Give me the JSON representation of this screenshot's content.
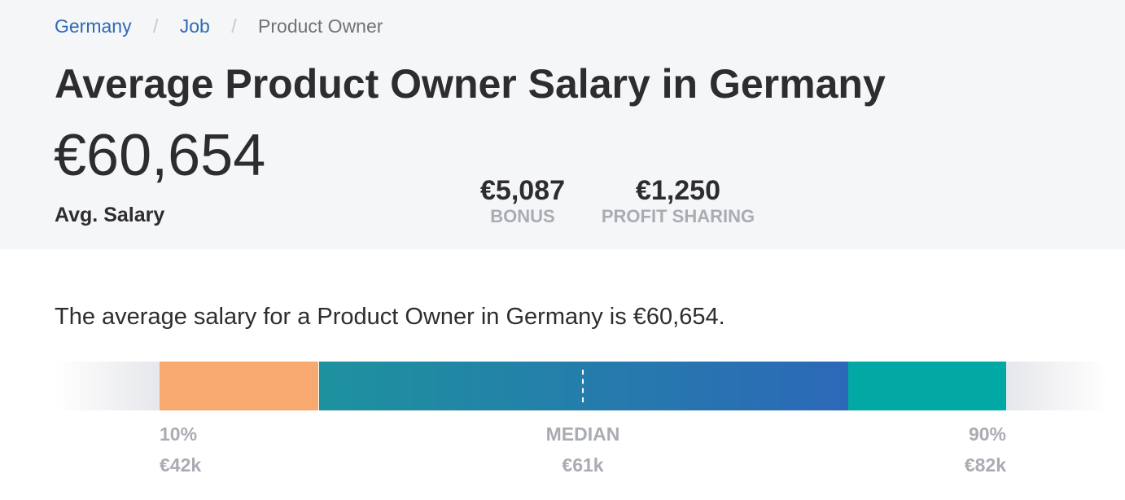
{
  "breadcrumb": {
    "items": [
      {
        "label": "Germany"
      },
      {
        "label": "Job"
      },
      {
        "label": "Product Owner"
      }
    ],
    "separator": "/"
  },
  "title": "Average Product Owner Salary in Germany",
  "avg_salary": {
    "value": "€60,654",
    "label": "Avg. Salary"
  },
  "stats": {
    "bonus": {
      "value": "€5,087",
      "label": "BONUS"
    },
    "profit_sharing": {
      "value": "€1,250",
      "label": "PROFIT SHARING"
    }
  },
  "summary": "The average salary for a Product Owner in Germany is €60,654.",
  "range_bar": {
    "p10": {
      "label": "10%",
      "value": "€42k"
    },
    "median": {
      "label": "MEDIAN",
      "value": "€61k"
    },
    "p90": {
      "label": "90%",
      "value": "€82k"
    }
  },
  "colors": {
    "link": "#2e6ab4",
    "low_segment": "#f8a96f",
    "mid_gradient_start": "#1d929e",
    "mid_gradient_end": "#2c68b8",
    "high_segment": "#01a8a4",
    "header_bg": "#f5f6f8"
  }
}
